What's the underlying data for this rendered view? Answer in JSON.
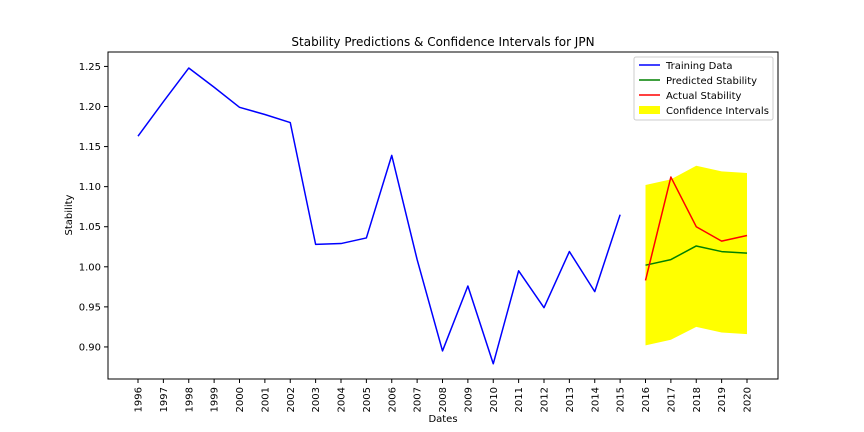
{
  "chart_data": {
    "type": "line",
    "title": "Stability Predictions & Confidence Intervals for JPN",
    "xlabel": "Dates",
    "ylabel": "Stability",
    "categories": [
      "1996",
      "1997",
      "1998",
      "1999",
      "2000",
      "2001",
      "2002",
      "2003",
      "2004",
      "2005",
      "2006",
      "2007",
      "2008",
      "2009",
      "2010",
      "2011",
      "2012",
      "2013",
      "2014",
      "2015",
      "2016",
      "2017",
      "2018",
      "2019",
      "2020"
    ],
    "yticks": [
      0.9,
      0.95,
      1.0,
      1.05,
      1.1,
      1.15,
      1.2,
      1.25
    ],
    "ytick_labels": [
      "0.90",
      "0.95",
      "1.00",
      "1.05",
      "1.10",
      "1.15",
      "1.20",
      "1.25"
    ],
    "ylim": [
      0.86,
      1.268
    ],
    "grid": false,
    "legend_position": "top-right",
    "series": [
      {
        "name": "Training Data",
        "color": "#0000ff",
        "x": [
          "1996",
          "1997",
          "1998",
          "1999",
          "2000",
          "2001",
          "2002",
          "2003",
          "2004",
          "2005",
          "2006",
          "2007",
          "2008",
          "2009",
          "2010",
          "2011",
          "2012",
          "2013",
          "2014",
          "2015"
        ],
        "values": [
          1.163,
          1.206,
          1.248,
          1.224,
          1.199,
          1.19,
          1.18,
          1.028,
          1.029,
          1.036,
          1.139,
          1.009,
          0.895,
          0.976,
          0.879,
          0.995,
          0.949,
          1.019,
          0.969,
          1.065
        ]
      },
      {
        "name": "Predicted Stability",
        "color": "#008000",
        "x": [
          "2016",
          "2017",
          "2018",
          "2019",
          "2020"
        ],
        "values": [
          1.002,
          1.009,
          1.026,
          1.019,
          1.017
        ]
      },
      {
        "name": "Actual Stability",
        "color": "#ff0000",
        "x": [
          "2016",
          "2017",
          "2018",
          "2019",
          "2020"
        ],
        "values": [
          0.983,
          1.112,
          1.05,
          1.032,
          1.039
        ]
      }
    ],
    "confidence_interval": {
      "name": "Confidence Intervals",
      "color": "#ffff00",
      "x": [
        "2016",
        "2017",
        "2018",
        "2019",
        "2020"
      ],
      "lower": [
        0.902,
        0.909,
        0.925,
        0.918,
        0.916
      ],
      "upper": [
        1.102,
        1.109,
        1.126,
        1.119,
        1.117
      ]
    }
  }
}
